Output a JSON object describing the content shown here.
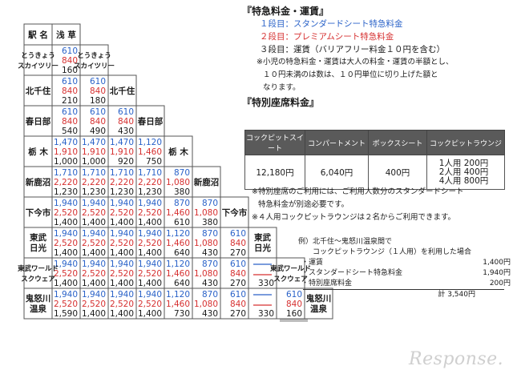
{
  "matrix": {
    "header_label": "駅 名",
    "first_station": "浅 草",
    "stations": [
      {
        "lines": [
          "とうきょう",
          "スカイツリー"
        ],
        "fares": [
          [
            610,
            840,
            160
          ]
        ]
      },
      {
        "lines": [
          "北千住"
        ],
        "fares": [
          [
            610,
            840,
            210
          ],
          [
            610,
            840,
            180
          ]
        ]
      },
      {
        "lines": [
          "春日部"
        ],
        "fares": [
          [
            610,
            840,
            540
          ],
          [
            610,
            840,
            490
          ],
          [
            610,
            840,
            430
          ]
        ]
      },
      {
        "lines": [
          "栃 木"
        ],
        "fares": [
          [
            1470,
            1910,
            1000
          ],
          [
            1470,
            1910,
            1000
          ],
          [
            1470,
            1910,
            920
          ],
          [
            1120,
            1460,
            750
          ]
        ]
      },
      {
        "lines": [
          "新鹿沼"
        ],
        "fares": [
          [
            1710,
            2220,
            1230
          ],
          [
            1710,
            2220,
            1230
          ],
          [
            1710,
            2220,
            1230
          ],
          [
            1710,
            2220,
            1230
          ],
          [
            870,
            1080,
            380
          ]
        ]
      },
      {
        "lines": [
          "下今市"
        ],
        "fares": [
          [
            1940,
            2520,
            1400
          ],
          [
            1940,
            2520,
            1400
          ],
          [
            1940,
            2520,
            1400
          ],
          [
            1940,
            2520,
            1400
          ],
          [
            870,
            1460,
            610
          ],
          [
            870,
            1080,
            380
          ]
        ]
      },
      {
        "lines": [
          "東武",
          "日光"
        ],
        "fares": [
          [
            1940,
            2520,
            1400
          ],
          [
            1940,
            2520,
            1400
          ],
          [
            1940,
            2520,
            1400
          ],
          [
            1940,
            2520,
            1400
          ],
          [
            1120,
            1460,
            640
          ],
          [
            870,
            1080,
            430
          ],
          [
            610,
            840,
            270
          ]
        ]
      },
      {
        "lines": [
          "東武ワールド",
          "スクウェア"
        ],
        "fares": [
          [
            1940,
            2520,
            1400
          ],
          [
            1940,
            2520,
            1400
          ],
          [
            1940,
            2520,
            1400
          ],
          [
            1940,
            2520,
            1400
          ],
          [
            1120,
            1460,
            640
          ],
          [
            870,
            1080,
            430
          ],
          [
            610,
            840,
            270
          ],
          [
            null,
            null,
            330
          ]
        ]
      },
      {
        "lines": [
          "鬼怒川",
          "温泉"
        ],
        "fares": [
          [
            1940,
            2520,
            1590
          ],
          [
            1940,
            2520,
            1400
          ],
          [
            1940,
            2520,
            1400
          ],
          [
            1940,
            2520,
            1400
          ],
          [
            1120,
            1460,
            730
          ],
          [
            870,
            1080,
            430
          ],
          [
            610,
            840,
            270
          ],
          [
            null,
            null,
            330
          ],
          [
            610,
            840,
            160
          ]
        ]
      }
    ],
    "colors": {
      "standard": "#2a62c8",
      "premium": "#d63030",
      "base": "#1a1a1a",
      "dash": "#2a62c8"
    }
  },
  "fare_info": {
    "title": "『特急料金・運賃』",
    "line1": "１段目：スタンダードシート特急料金",
    "line2": "２段目：プレミアムシート特急料金",
    "line3": "３段目：運賃（バリアフリー料金１０円を含む）",
    "note_a": "※小児の特急料金・運賃は大人の料金・運賃の半額とし、",
    "note_b": "１０円未満のは数は、１０円単位に切り上げた額と",
    "note_c": "なります。"
  },
  "special_seat": {
    "title": "『特別座席料金』",
    "headers": [
      "コックピットスイート",
      "コンパートメント",
      "ボックスシート",
      "コックピットラウンジ"
    ],
    "values": [
      "12,180円",
      "6,040円",
      "400円"
    ],
    "lounge": [
      "1人用 200円",
      "2人用 400円",
      "4人用 800円"
    ],
    "note1a": "※特別座席のご利用には、ご利用人数分のスタンダードシート",
    "note1b": "特急料金が別途必要です。",
    "note2": "※４人用コックピットラウンジは２名からご利用できます。"
  },
  "example": {
    "heading": "例）北千住～鬼怒川温泉間で",
    "subheading": "コックピットラウンジ（１人用）を利用した場合",
    "items": [
      {
        "label": "・運賃",
        "value": "1,400円"
      },
      {
        "label": "・スタンダードシート特急料金",
        "value": "1,940円"
      },
      {
        "label": "・特別座席料金",
        "value": "200円"
      }
    ],
    "total": "計 3,540円"
  },
  "watermark": "Response."
}
